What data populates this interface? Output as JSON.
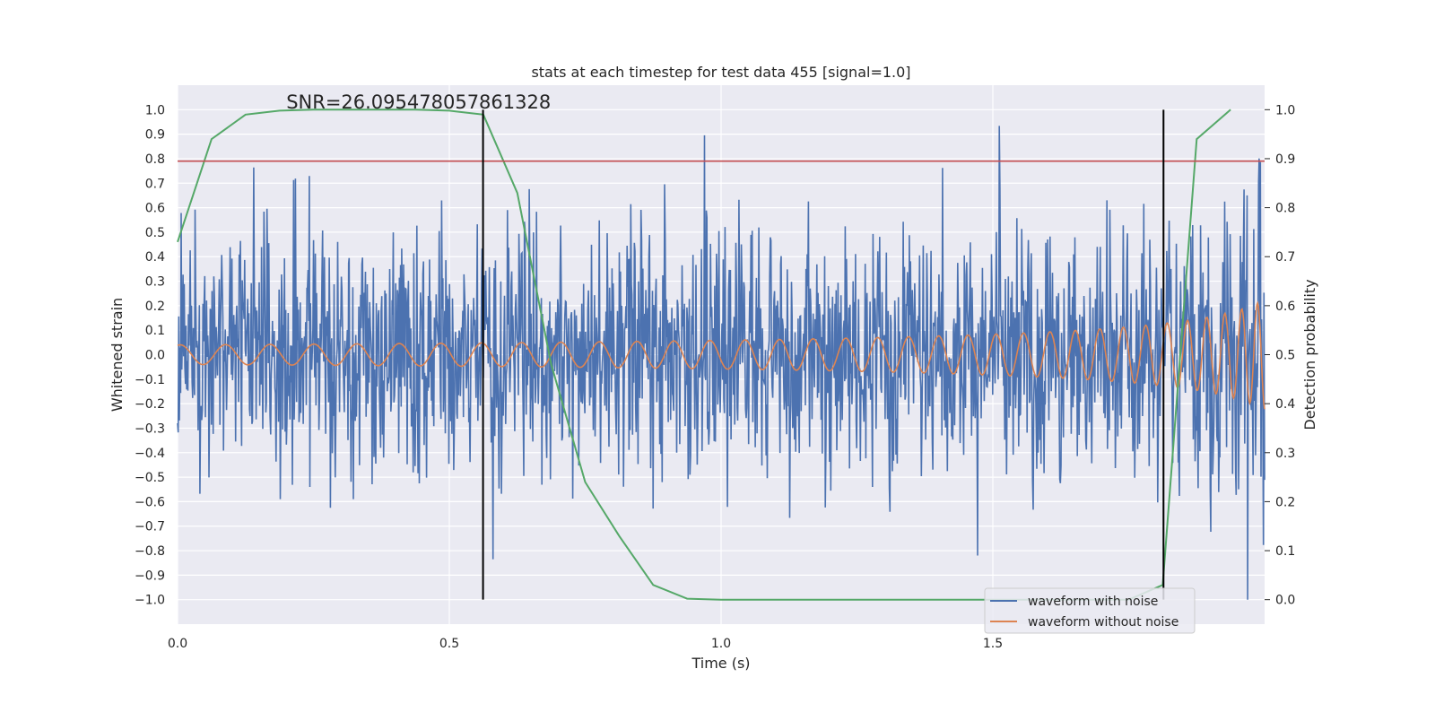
{
  "chart_data": {
    "type": "line",
    "title": "stats at each timestep for test data 455 [signal=1.0]",
    "annotation": "SNR=26.095478057861328",
    "xlabel": "Time (s)",
    "ylabel": "Whitened strain",
    "y2label": "Detection probability",
    "xlim": [
      0.0,
      2.0
    ],
    "ylim": [
      -1.1,
      1.1
    ],
    "y2lim": [
      -0.05,
      1.05
    ],
    "x_ticks": [
      0.0,
      0.5,
      1.0,
      1.5
    ],
    "x_tick_labels": [
      "0.0",
      "0.5",
      "1.0",
      "1.5"
    ],
    "y_ticks": [
      1.0,
      0.9,
      0.8,
      0.7,
      0.6,
      0.5,
      0.4,
      0.3,
      0.2,
      0.1,
      0.0,
      -0.1,
      -0.2,
      -0.3,
      -0.4,
      -0.5,
      -0.6,
      -0.7,
      -0.8,
      -0.9,
      -1.0
    ],
    "y_tick_labels": [
      "1.0",
      "0.9",
      "0.8",
      "0.7",
      "0.6",
      "0.5",
      "0.4",
      "0.3",
      "0.2",
      "0.1",
      "0.0",
      "−0.1",
      "−0.2",
      "−0.3",
      "−0.4",
      "−0.5",
      "−0.6",
      "−0.7",
      "−0.8",
      "−0.9",
      "−1.0"
    ],
    "y2_ticks": [
      1.0,
      0.9,
      0.8,
      0.7,
      0.6,
      0.5,
      0.4,
      0.3,
      0.2,
      0.1,
      0.0
    ],
    "y2_tick_labels": [
      "1.0",
      "0.9",
      "0.8",
      "0.7",
      "0.6",
      "0.5",
      "0.4",
      "0.3",
      "0.2",
      "0.1",
      "0.0"
    ],
    "grid": true,
    "threshold_line": {
      "axis": "y",
      "value": 0.79,
      "color": "#c44e52"
    },
    "vertical_lines": [
      {
        "x": 0.562,
        "y_from": -1.0,
        "y_to": 1.0,
        "color": "#000000"
      },
      {
        "x": 1.814,
        "y_from": -1.0,
        "y_to": 1.0,
        "color": "#000000"
      }
    ],
    "series": [
      {
        "name": "waveform with noise",
        "color": "#4c72b0",
        "axis": "left",
        "sampling": {
          "n": 1800,
          "x_start": 0.0,
          "x_end": 2.0,
          "noise_sigma": 0.25,
          "seed": 455,
          "signal_gain": 1.0
        }
      },
      {
        "name": "waveform without noise",
        "color": "#dd8452",
        "axis": "left",
        "model": {
          "type": "chirp",
          "f0": 14,
          "f_coalesce": 2.12,
          "amp0": 0.04,
          "phase": 1.2,
          "points": 1400
        }
      },
      {
        "name": "detection probability",
        "color": "#55a868",
        "axis": "right",
        "x": [
          0.0,
          0.0625,
          0.125,
          0.1875,
          0.25,
          0.3125,
          0.375,
          0.4375,
          0.5,
          0.5625,
          0.625,
          0.6875,
          0.75,
          0.8125,
          0.875,
          0.9375,
          1.0,
          1.0625,
          1.125,
          1.1875,
          1.25,
          1.3125,
          1.375,
          1.4375,
          1.5,
          1.5625,
          1.625,
          1.6875,
          1.75,
          1.8125,
          1.875,
          1.9375
        ],
        "y": [
          0.73,
          0.94,
          0.99,
          0.998,
          1.0,
          1.0,
          1.0,
          1.0,
          0.998,
          0.99,
          0.83,
          0.48,
          0.24,
          0.13,
          0.03,
          0.002,
          0.0,
          0.0,
          0.0,
          0.0,
          0.0,
          0.0,
          0.0,
          0.0,
          0.0,
          0.0,
          0.0,
          0.0,
          0.0,
          0.03,
          0.94,
          1.0
        ]
      }
    ],
    "legend": {
      "position": "lower-right",
      "entries": [
        {
          "label": "waveform with noise",
          "color": "#4c72b0"
        },
        {
          "label": "waveform without noise",
          "color": "#dd8452"
        }
      ]
    },
    "style": {
      "plot_background": "#eaeaf2",
      "grid_color": "#ffffff"
    }
  }
}
